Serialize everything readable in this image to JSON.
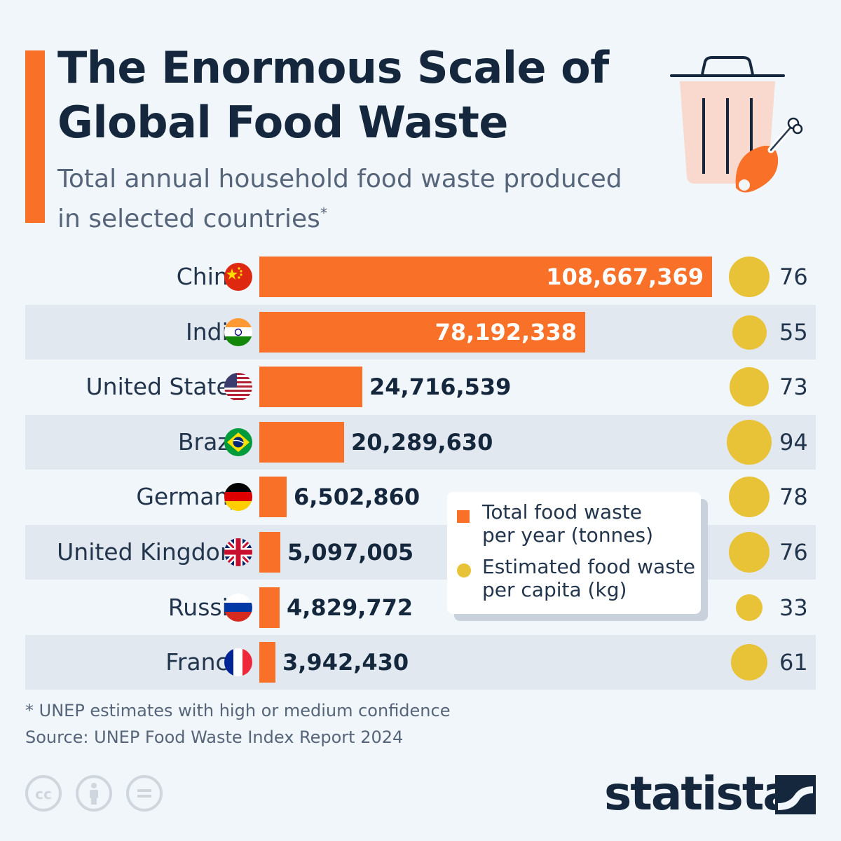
{
  "header": {
    "title_line1": "The Enormous Scale of",
    "title_line2": "Global Food Waste",
    "subtitle_line1": "Total annual household food waste produced",
    "subtitle_line2": "in selected countries",
    "subtitle_mark": "*"
  },
  "legend": {
    "total_line1": "Total food waste",
    "total_line2": "per year (tonnes)",
    "capita_line1": "Estimated food waste",
    "capita_line2": "per capita (kg)"
  },
  "footer": {
    "footnote": "* UNEP estimates with high or medium confidence",
    "source": "Source: UNEP Food Waste Index Report 2024",
    "brand": "statista"
  },
  "colors": {
    "bar": "#f97028",
    "bubble": "#e8c237",
    "title": "#14273d",
    "background": "#f1f6fa",
    "row_shade": "#e1e8f0"
  },
  "icons": [
    "trash-can-icon",
    "chicken-leg-icon",
    "creative-commons-icon",
    "attribution-icon",
    "no-derivatives-icon",
    "statista-logo-icon"
  ],
  "chart_data": {
    "type": "bar",
    "orientation": "horizontal",
    "categories": [
      "China",
      "India",
      "United States",
      "Brazil",
      "Germany",
      "United Kingdom",
      "Russia",
      "France"
    ],
    "series": [
      {
        "name": "Total food waste per year (tonnes)",
        "values": [
          108667369,
          78192338,
          24716539,
          20289630,
          6502860,
          5097005,
          4829772,
          3942430
        ],
        "labels": [
          "108,667,369",
          "78,192,338",
          "24,716,539",
          "20,289,630",
          "6,502,860",
          "5,097,005",
          "4,829,772",
          "3,942,430"
        ]
      },
      {
        "name": "Estimated food waste per capita (kg)",
        "values": [
          76,
          55,
          73,
          94,
          78,
          76,
          33,
          61
        ],
        "labels": [
          "76",
          "55",
          "73",
          "94",
          "78",
          "76",
          "33",
          "61"
        ]
      }
    ],
    "flags": [
      "china-flag-icon",
      "india-flag-icon",
      "usa-flag-icon",
      "brazil-flag-icon",
      "germany-flag-icon",
      "uk-flag-icon",
      "russia-flag-icon",
      "france-flag-icon"
    ],
    "legend_position": "inside-bottom-right",
    "grid": false
  }
}
